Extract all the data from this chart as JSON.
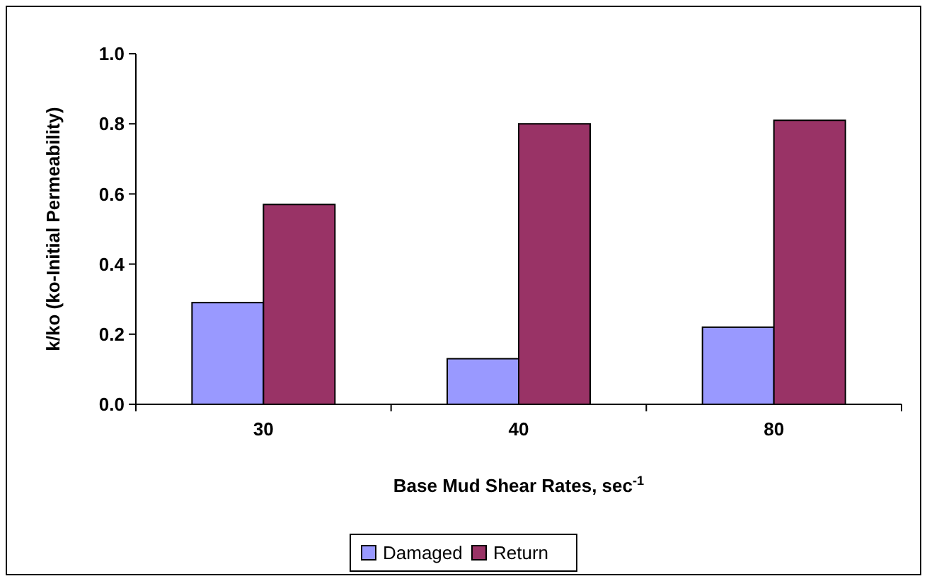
{
  "chart_data": {
    "type": "bar",
    "xlabel": "Base Mud Shear Rates, sec$^{-1}$",
    "ylabel": "k/ko (ko-Initial Permeability)",
    "categories": [
      "30",
      "40",
      "80"
    ],
    "series": [
      {
        "name": "Damaged",
        "color": "#9999ff",
        "values": [
          0.29,
          0.13,
          0.22
        ]
      },
      {
        "name": "Return",
        "color": "#993366",
        "values": [
          0.57,
          0.8,
          0.81
        ]
      }
    ],
    "ylim": [
      0,
      1
    ],
    "yticks": [
      {
        "value": 0,
        "label": "0.0"
      },
      {
        "value": 0.2,
        "label": "0.2"
      },
      {
        "value": 0.4,
        "label": "0.4"
      },
      {
        "value": 0.6,
        "label": "0.6"
      },
      {
        "value": 0.8,
        "label": "0.8"
      },
      {
        "value": 1,
        "label": "1.0"
      }
    ],
    "grid": false,
    "legend": "bottom"
  }
}
